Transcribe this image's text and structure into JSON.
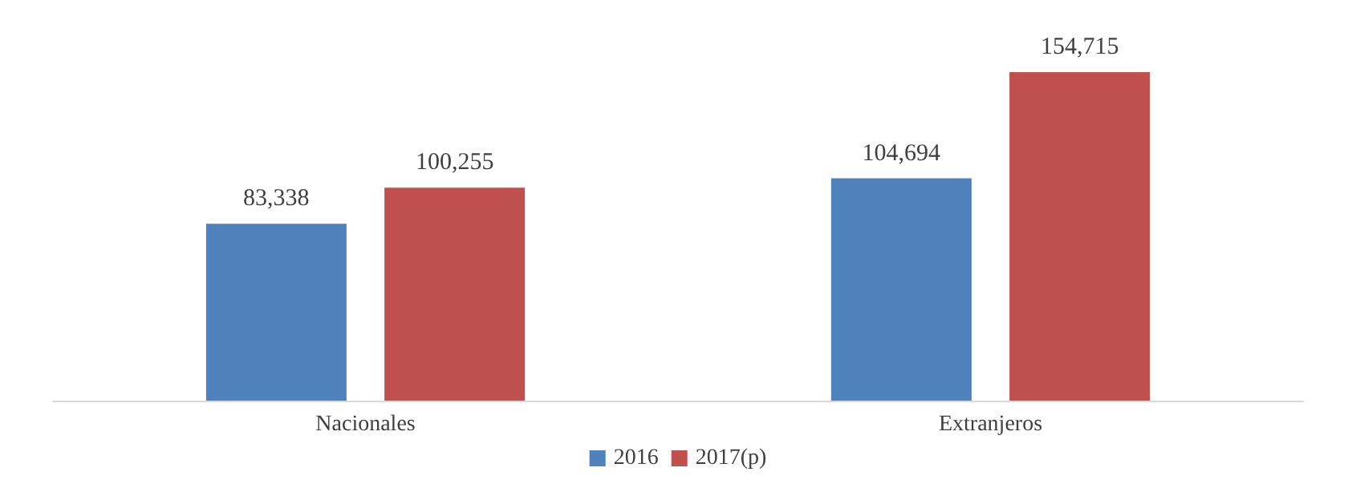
{
  "chart_data": {
    "type": "bar",
    "categories": [
      "Nacionales",
      "Extranjeros"
    ],
    "series": [
      {
        "name": "2016",
        "color": "#4f81bd",
        "values": [
          83338,
          104694
        ],
        "value_labels": [
          "83,338",
          "104,694"
        ]
      },
      {
        "name": "2017(p)",
        "color": "#c0504d",
        "values": [
          100255,
          154715
        ],
        "value_labels": [
          "100,255",
          "154,715"
        ]
      }
    ],
    "legend": "bottom"
  }
}
